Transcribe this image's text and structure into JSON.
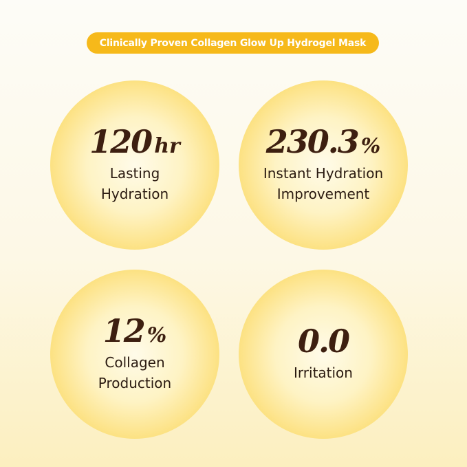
{
  "banner": "Clinically Proven Collagen Glow Up Hydrogel Mask",
  "stats": [
    {
      "value": "120",
      "unit": "hr",
      "line1": "Lasting",
      "line2": "Hydration"
    },
    {
      "value": "230.3",
      "unit": "%",
      "line1": "Instant Hydration",
      "line2": "Improvement"
    },
    {
      "value": "12",
      "unit": "%",
      "line1": "Collagen",
      "line2": "Production"
    },
    {
      "value": "0.0",
      "unit": "",
      "line1": "Irritation",
      "line2": ""
    }
  ],
  "colors": {
    "accent": "#f6b91a",
    "number": "#3d1f10"
  }
}
